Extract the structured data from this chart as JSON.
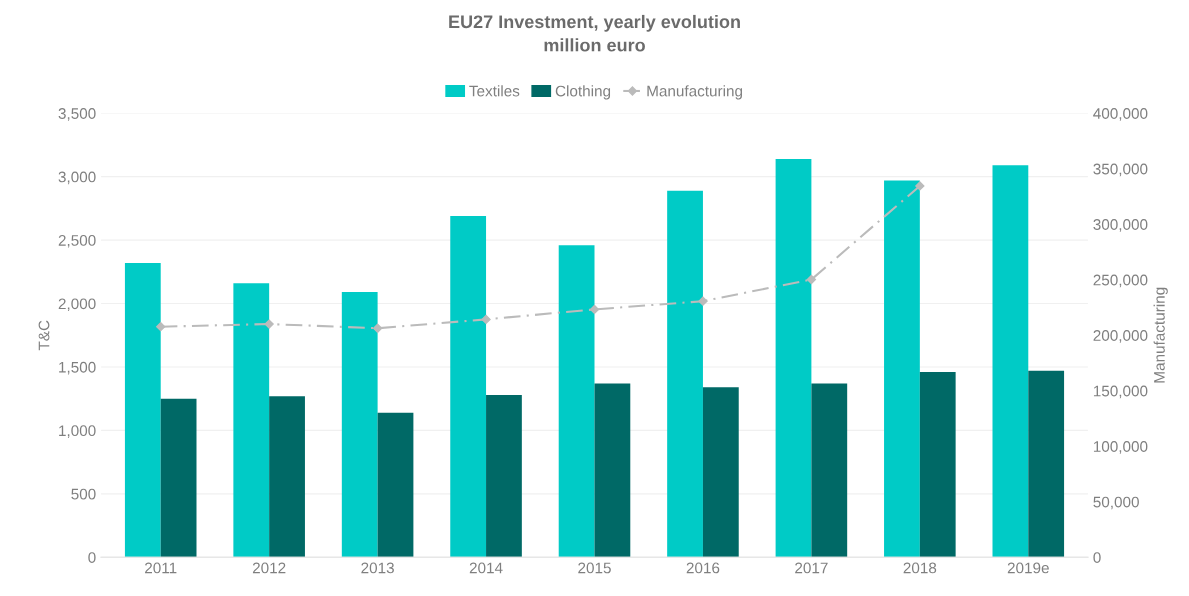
{
  "chart_data": {
    "type": "bar",
    "title": "EU27 Investment, yearly evolution\nmillion euro",
    "categories": [
      "2011",
      "2012",
      "2013",
      "2014",
      "2015",
      "2016",
      "2017",
      "2018",
      "2019e"
    ],
    "series": [
      {
        "name": "Textiles",
        "color": "#00cbc6",
        "values": [
          2320,
          2160,
          2090,
          2690,
          2460,
          2890,
          3140,
          2970,
          3090
        ]
      },
      {
        "name": "Clothing",
        "color": "#006966",
        "values": [
          1250,
          1270,
          1140,
          1280,
          1370,
          1340,
          1370,
          1460,
          1470
        ]
      },
      {
        "name": "Manufacturing",
        "type": "line",
        "axis": "y2",
        "color": "#bbbbbb",
        "marker": "diamond",
        "line_style": "dashed",
        "values": [
          207700,
          210100,
          206300,
          214300,
          223300,
          230700,
          250200,
          334500,
          null
        ]
      }
    ],
    "ylabel": "T&C",
    "y2label": "Manufacturing",
    "ylim": [
      0,
      3500
    ],
    "yticks": [
      {
        "value": 0,
        "label": "0"
      },
      {
        "value": 500,
        "label": "500"
      },
      {
        "value": 1000,
        "label": "1,000"
      },
      {
        "value": 1500,
        "label": "1,500"
      },
      {
        "value": 2000,
        "label": "2,000"
      },
      {
        "value": 2500,
        "label": "2,500"
      },
      {
        "value": 3000,
        "label": "3,000"
      },
      {
        "value": 3500,
        "label": "3,500"
      }
    ],
    "y2lim": [
      0,
      400000
    ],
    "y2ticks": [
      {
        "value": 0,
        "label": "0"
      },
      {
        "value": 50000,
        "label": "50,000"
      },
      {
        "value": 100000,
        "label": "100,000"
      },
      {
        "value": 150000,
        "label": "150,000"
      },
      {
        "value": 200000,
        "label": "200,000"
      },
      {
        "value": 250000,
        "label": "250,000"
      },
      {
        "value": 300000,
        "label": "300,000"
      },
      {
        "value": 350000,
        "label": "350,000"
      },
      {
        "value": 400000,
        "label": "400,000"
      }
    ],
    "grid": "y",
    "legend": "top"
  }
}
